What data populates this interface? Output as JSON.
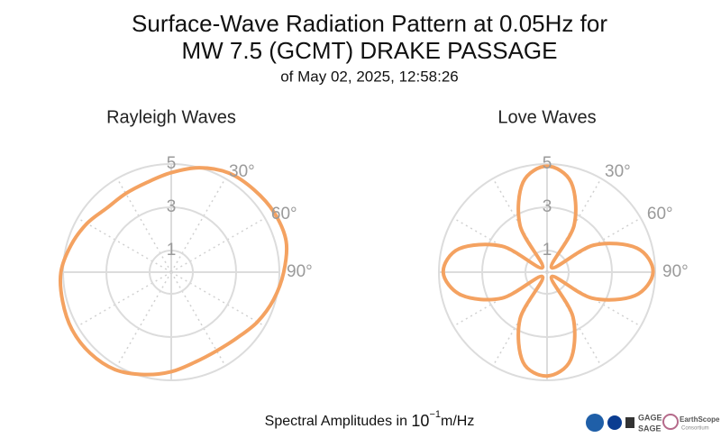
{
  "header": {
    "title_lines": [
      "Surface-Wave Radiation Pattern at 0.05Hz for",
      "MW 7.5 (GCMT) DRAKE PASSAGE"
    ],
    "subtitle": "of May 02, 2025, 12:58:26"
  },
  "caption": {
    "text": "Spectral Amplitudes in",
    "base": "10",
    "exponent": "−1",
    "unit": "m/Hz"
  },
  "logos": {
    "gage": "GAGE",
    "sage": "SAGE",
    "earthscope": "EarthScope",
    "consortium": "Consortium"
  },
  "chart_data": [
    {
      "type": "polar",
      "title": "Rayleigh Waves",
      "color": "#f4a261",
      "theta": [
        0,
        15,
        30,
        45,
        60,
        75,
        90,
        105,
        120,
        135,
        150,
        165,
        180,
        195,
        210,
        225,
        240,
        255,
        270,
        285,
        300,
        315,
        330,
        345
      ],
      "r": [
        4.6,
        5.0,
        5.3,
        5.4,
        5.5,
        5.5,
        5.2,
        4.9,
        4.6,
        4.3,
        4.2,
        4.3,
        4.6,
        4.9,
        5.2,
        5.3,
        5.3,
        5.2,
        5.1,
        4.8,
        4.5,
        4.2,
        4.2,
        4.3
      ],
      "rlim": [
        0,
        5
      ],
      "rticks": [
        1,
        3,
        5
      ],
      "theta_grid": [
        0,
        30,
        60,
        90,
        120,
        150,
        180,
        210,
        240,
        270,
        300,
        330
      ],
      "thetaticks": [
        {
          "value": 30,
          "label": "30°"
        },
        {
          "value": 60,
          "label": "60°"
        },
        {
          "value": 90,
          "label": "90°"
        }
      ]
    },
    {
      "type": "polar",
      "title": "Love Waves",
      "color": "#f4a261",
      "theta": [
        0,
        15,
        30,
        45,
        60,
        75,
        90,
        105,
        120,
        135,
        150,
        165,
        180,
        195,
        210,
        225,
        240,
        255,
        270,
        285,
        300,
        315,
        330,
        345
      ],
      "r": [
        4.9,
        4.3,
        2.5,
        0.3,
        2.5,
        4.3,
        4.9,
        4.2,
        2.4,
        0.3,
        2.4,
        4.2,
        4.8,
        4.3,
        2.5,
        0.3,
        2.4,
        4.1,
        4.8,
        4.2,
        2.4,
        0.3,
        2.5,
        4.3
      ],
      "rlim": [
        0,
        5
      ],
      "rticks": [
        1,
        3,
        5
      ],
      "theta_grid": [
        0,
        30,
        60,
        90,
        120,
        150,
        180,
        210,
        240,
        270,
        300,
        330
      ],
      "thetaticks": [
        {
          "value": 30,
          "label": "30°"
        },
        {
          "value": 60,
          "label": "60°"
        },
        {
          "value": 90,
          "label": "90°"
        }
      ]
    }
  ]
}
